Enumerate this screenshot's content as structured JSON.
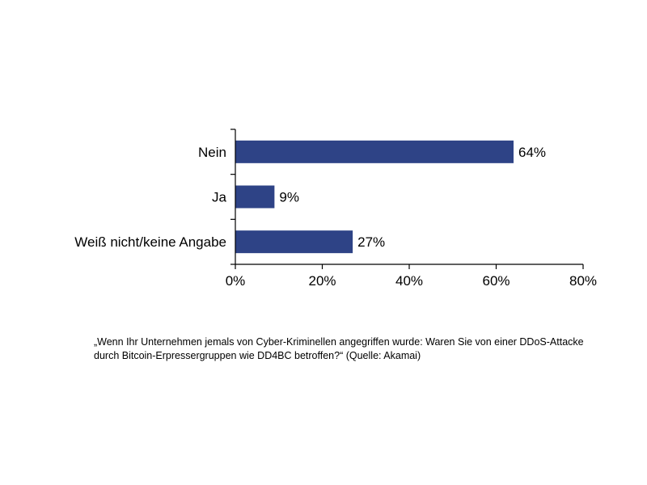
{
  "chart_data": {
    "type": "bar",
    "orientation": "horizontal",
    "categories": [
      "Nein",
      "Ja",
      "Weiß nicht/keine Angabe"
    ],
    "values": [
      64,
      9,
      27
    ],
    "value_labels": [
      "64%",
      "9%",
      "27%"
    ],
    "xlim": [
      0,
      80
    ],
    "x_ticks": [
      0,
      20,
      40,
      60,
      80
    ],
    "x_tick_labels": [
      "0%",
      "20%",
      "40%",
      "60%",
      "80%"
    ],
    "title": "",
    "xlabel": "",
    "ylabel": "",
    "grid": false,
    "bar_color": "#2e4386"
  },
  "caption": "„Wenn Ihr Unternehmen jemals von Cyber-Kriminellen angegriffen wurde: Waren Sie von einer DDoS-Attacke durch Bitcoin-Erpressergruppen wie DD4BC betroffen?“ (Quelle: Akamai)"
}
